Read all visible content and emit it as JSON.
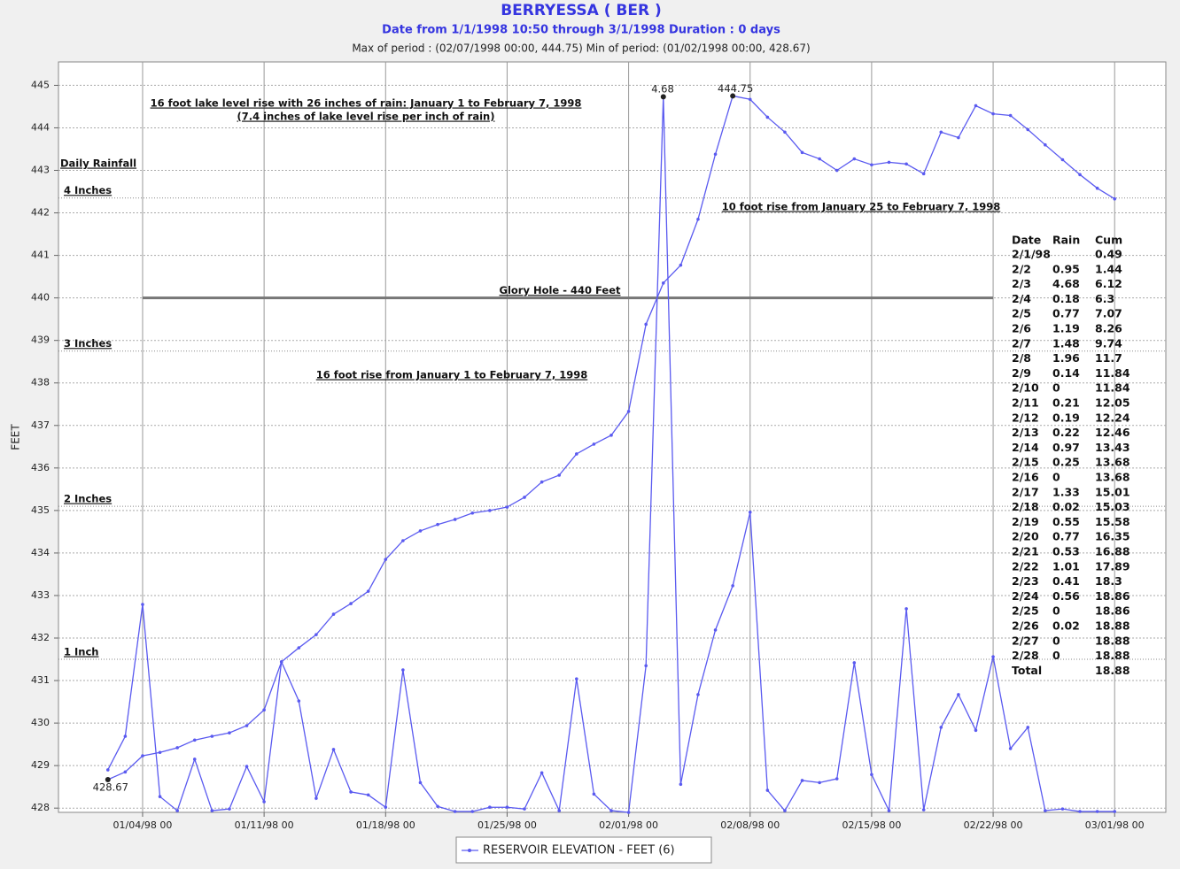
{
  "chart_data": {
    "type": "line",
    "title": "BERRYESSA ( BER )",
    "subtitle": "Date from 1/1/1998 10:50 through 3/1/1998 Duration : 0 days",
    "period_note": "Max of period : (02/07/1998 00:00, 444.75) Min of period: (01/02/1998 00:00,  428.67)",
    "y_label": "FEET",
    "grid": true,
    "legend": "bottom",
    "x": [
      "1998-01-02",
      "1998-01-03",
      "1998-01-04",
      "1998-01-05",
      "1998-01-06",
      "1998-01-07",
      "1998-01-08",
      "1998-01-09",
      "1998-01-10",
      "1998-01-11",
      "1998-01-12",
      "1998-01-13",
      "1998-01-14",
      "1998-01-15",
      "1998-01-16",
      "1998-01-17",
      "1998-01-18",
      "1998-01-19",
      "1998-01-20",
      "1998-01-21",
      "1998-01-22",
      "1998-01-23",
      "1998-01-24",
      "1998-01-25",
      "1998-01-26",
      "1998-01-27",
      "1998-01-28",
      "1998-01-29",
      "1998-01-30",
      "1998-01-31",
      "1998-02-01",
      "1998-02-02",
      "1998-02-03",
      "1998-02-04",
      "1998-02-05",
      "1998-02-06",
      "1998-02-07",
      "1998-02-08",
      "1998-02-09",
      "1998-02-10",
      "1998-02-11",
      "1998-02-12",
      "1998-02-13",
      "1998-02-14",
      "1998-02-15",
      "1998-02-16",
      "1998-02-17",
      "1998-02-18",
      "1998-02-19",
      "1998-02-20",
      "1998-02-21",
      "1998-02-22",
      "1998-02-23",
      "1998-02-24",
      "1998-02-25",
      "1998-02-26",
      "1998-02-27",
      "1998-02-28",
      "1998-03-01"
    ],
    "series": [
      {
        "name": "RESERVOIR ELEVATION - FEET (6)",
        "color": "#5a5af0",
        "values": [
          428.67,
          428.85,
          429.23,
          429.31,
          429.42,
          429.6,
          429.69,
          429.77,
          429.94,
          430.31,
          431.44,
          431.77,
          432.08,
          432.56,
          432.81,
          433.1,
          433.85,
          434.29,
          434.52,
          434.67,
          434.79,
          434.94,
          435.0,
          435.08,
          435.31,
          435.67,
          435.83,
          436.33,
          436.56,
          436.77,
          437.33,
          439.38,
          440.35,
          440.77,
          441.85,
          443.38,
          444.75,
          444.67,
          444.25,
          443.9,
          443.42,
          443.27,
          443.0,
          443.27,
          443.13,
          443.19,
          443.15,
          442.92,
          443.9,
          443.77,
          444.52,
          444.33,
          444.29,
          443.96,
          443.6,
          443.25,
          442.9,
          442.58,
          442.33
        ],
        "value_labels": [
          "428.67",
          null,
          null,
          null,
          null,
          null,
          null,
          null,
          null,
          null,
          null,
          null,
          null,
          null,
          null,
          null,
          null,
          null,
          null,
          null,
          null,
          null,
          null,
          null,
          null,
          null,
          null,
          null,
          null,
          null,
          null,
          null,
          null,
          null,
          null,
          null,
          "444.75",
          null,
          null,
          null,
          null,
          null,
          null,
          null,
          null,
          null,
          null,
          null,
          null,
          null,
          null,
          null,
          null,
          null,
          null,
          null,
          null,
          null,
          null
        ]
      },
      {
        "color": "#5a5af0",
        "values": [
          428.9,
          429.69,
          432.79,
          428.27,
          427.94,
          429.15,
          427.94,
          427.98,
          428.98,
          428.15,
          431.44,
          430.52,
          428.23,
          429.38,
          428.38,
          428.31,
          428.02,
          431.25,
          428.6,
          428.04,
          427.92,
          427.92,
          428.02,
          428.02,
          427.98,
          428.83,
          427.94,
          431.04,
          428.33,
          427.94,
          427.9,
          431.35,
          444.73,
          428.56,
          430.67,
          432.19,
          433.23,
          434.96,
          428.42,
          427.94,
          428.65,
          428.6,
          428.69,
          431.42,
          428.79,
          427.94,
          432.69,
          427.96,
          429.9,
          430.67,
          429.83,
          431.56,
          429.4,
          429.9,
          427.94,
          427.98,
          427.92,
          427.92,
          427.92
        ]
      }
    ],
    "xlim": [
      "1997-12-30",
      "1998-03-04"
    ],
    "xticks": [
      {
        "value": "1998-01-04",
        "label": "01/04/98 00"
      },
      {
        "value": "1998-01-11",
        "label": "01/11/98 00"
      },
      {
        "value": "1998-01-18",
        "label": "01/18/98 00"
      },
      {
        "value": "1998-01-25",
        "label": "01/25/98 00"
      },
      {
        "value": "1998-02-01",
        "label": "02/01/98 00"
      },
      {
        "value": "1998-02-08",
        "label": "02/08/98 00"
      },
      {
        "value": "1998-02-15",
        "label": "02/15/98 00"
      },
      {
        "value": "1998-02-22",
        "label": "02/22/98 00"
      },
      {
        "value": "1998-03-01",
        "label": "03/01/98 00"
      }
    ],
    "ylim": [
      427.9,
      445.55
    ],
    "yticks": [
      428,
      429,
      430,
      431,
      432,
      433,
      434,
      435,
      436,
      437,
      438,
      439,
      440,
      441,
      442,
      443,
      444,
      445
    ],
    "reference_line": {
      "value": 440,
      "label": "Glory Hole - 440 Feet"
    },
    "rain_scale_title": "Daily Rainfall",
    "rain_scale": [
      {
        "value": 442.35,
        "label": "4 Inches"
      },
      {
        "value": 438.75,
        "label": "3 Inches"
      },
      {
        "value": 435.1,
        "label": "2 Inches"
      },
      {
        "value": 431.5,
        "label": "1 Inch"
      }
    ],
    "annotations": [
      "16 foot lake level rise with 26 inches of rain: January 1 to February 7, 1998",
      "(7.4 inches of lake level rise per inch of rain)",
      "10 foot rise from January 25 to February 7, 1998",
      "16 foot rise from January 1 to February 7, 1998",
      "4.68"
    ],
    "rain_table": {
      "columns": [
        "Date",
        "Rain",
        "Cum"
      ],
      "rows": [
        {
          "date": "2/1/98",
          "cum": 0.49
        },
        {
          "date": "2/2",
          "rain": 0.95,
          "cum": 1.44
        },
        {
          "date": "2/3",
          "rain": 4.68,
          "cum": 6.12
        },
        {
          "date": "2/4",
          "rain": 0.18,
          "cum": 6.3
        },
        {
          "date": "2/5",
          "rain": 0.77,
          "cum": 7.07
        },
        {
          "date": "2/6",
          "rain": 1.19,
          "cum": 8.26
        },
        {
          "date": "2/7",
          "rain": 1.48,
          "cum": 9.74
        },
        {
          "date": "2/8",
          "rain": 1.96,
          "cum": 11.7
        },
        {
          "date": "2/9",
          "rain": 0.14,
          "cum": 11.84
        },
        {
          "date": "2/10",
          "rain": 0,
          "cum": 11.84
        },
        {
          "date": "2/11",
          "rain": 0.21,
          "cum": 12.05
        },
        {
          "date": "2/12",
          "rain": 0.19,
          "cum": 12.24
        },
        {
          "date": "2/13",
          "rain": 0.22,
          "cum": 12.46
        },
        {
          "date": "2/14",
          "rain": 0.97,
          "cum": 13.43
        },
        {
          "date": "2/15",
          "rain": 0.25,
          "cum": 13.68
        },
        {
          "date": "2/16",
          "rain": 0,
          "cum": 13.68
        },
        {
          "date": "2/17",
          "rain": 1.33,
          "cum": 15.01
        },
        {
          "date": "2/18",
          "rain": 0.02,
          "cum": 15.03
        },
        {
          "date": "2/19",
          "rain": 0.55,
          "cum": 15.58
        },
        {
          "date": "2/20",
          "rain": 0.77,
          "cum": 16.35
        },
        {
          "date": "2/21",
          "rain": 0.53,
          "cum": 16.88
        },
        {
          "date": "2/22",
          "rain": 1.01,
          "cum": 17.89
        },
        {
          "date": "2/23",
          "rain": 0.41,
          "cum": 18.3
        },
        {
          "date": "2/24",
          "rain": 0.56,
          "cum": 18.86
        },
        {
          "date": "2/25",
          "rain": 0,
          "cum": 18.86
        },
        {
          "date": "2/26",
          "rain": 0.02,
          "cum": 18.88
        },
        {
          "date": "2/27",
          "rain": 0,
          "cum": 18.88
        },
        {
          "date": "2/28",
          "rain": 0,
          "cum": 18.88
        },
        {
          "date": "Total",
          "cum": 18.88
        }
      ]
    }
  }
}
